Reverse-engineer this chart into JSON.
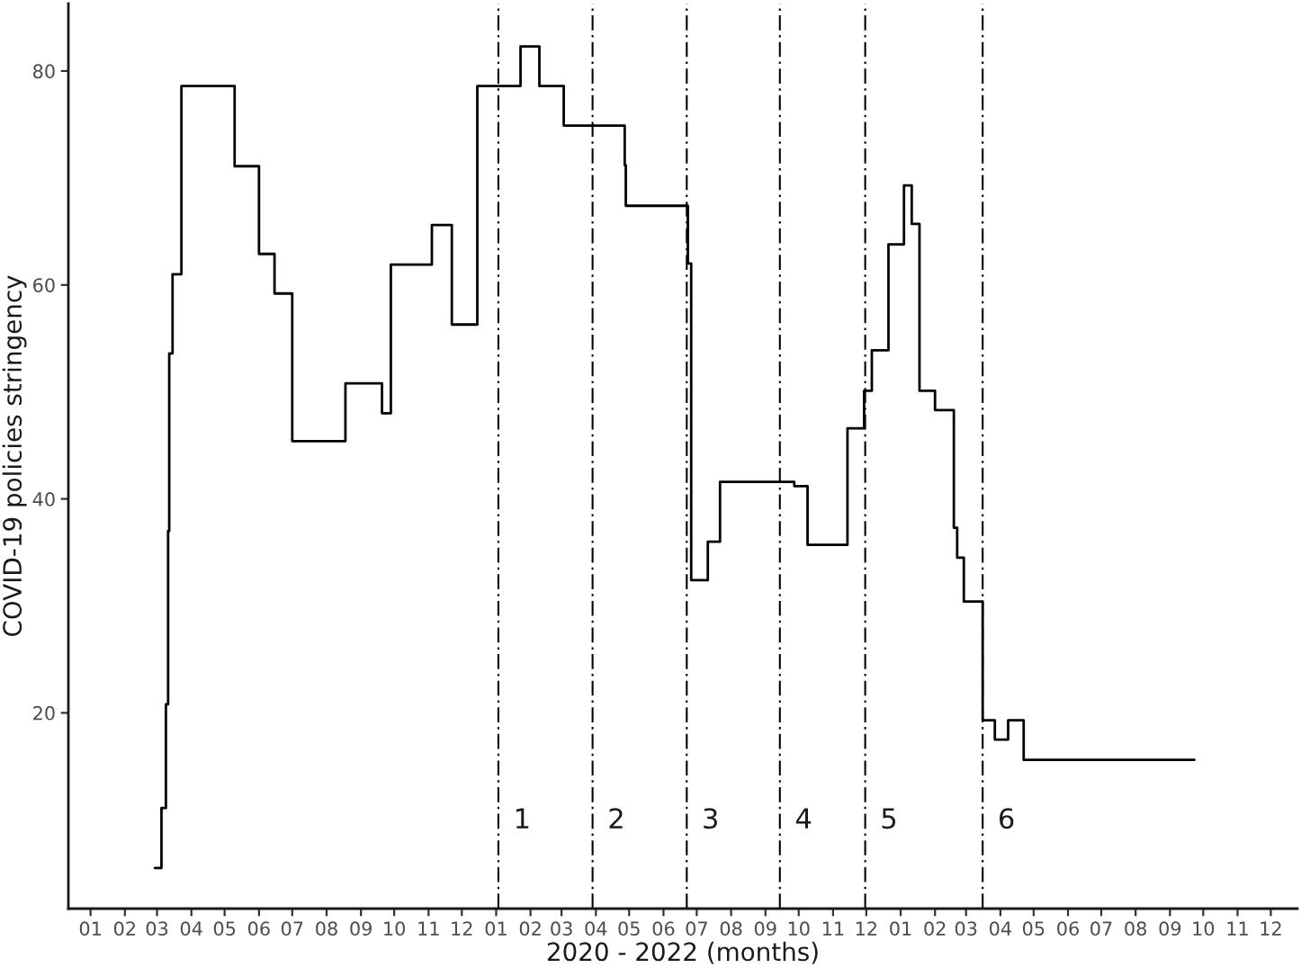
{
  "chart_data": {
    "type": "step",
    "xlabel": "2020 - 2022 (months)",
    "ylabel": "COVID-19 policies stringency",
    "color": "#000000",
    "x": [
      "2020-02-28",
      "2020-03-05",
      "2020-03-09",
      "2020-03-11",
      "2020-03-12",
      "2020-03-15",
      "2020-03-23",
      "2020-05-10",
      "2020-06-01",
      "2020-06-15",
      "2020-07-01",
      "2020-08-18",
      "2020-09-20",
      "2020-09-28",
      "2020-11-04",
      "2020-11-22",
      "2020-12-15",
      "2021-01-23",
      "2021-02-09",
      "2021-03-03",
      "2021-04-27",
      "2021-04-28",
      "2021-06-23",
      "2021-06-26",
      "2021-07-11",
      "2021-07-22",
      "2021-09-27",
      "2021-10-09",
      "2021-11-14",
      "2021-11-29",
      "2021-12-06",
      "2021-12-21",
      "2022-01-04",
      "2022-01-11",
      "2022-01-18",
      "2022-02-01",
      "2022-02-18",
      "2022-02-21",
      "2022-02-27",
      "2022-03-16",
      "2022-03-27",
      "2022-04-08",
      "2022-04-22",
      "2022-09-23"
    ],
    "values": [
      5.5,
      11.1,
      20.8,
      37.0,
      53.6,
      61.0,
      78.6,
      71.1,
      62.9,
      59.2,
      45.4,
      50.8,
      48.0,
      61.9,
      65.6,
      56.3,
      78.6,
      82.3,
      78.6,
      74.9,
      71.2,
      67.4,
      62.0,
      32.4,
      36.0,
      41.6,
      41.2,
      35.7,
      46.6,
      50.1,
      53.9,
      63.8,
      69.3,
      65.7,
      50.1,
      48.3,
      37.3,
      34.5,
      30.4,
      19.3,
      17.5,
      19.3,
      15.6,
      15.6
    ],
    "xlim": [
      "2019-12-12",
      "2022-12-25"
    ],
    "ylim": [
      1.7,
      86.3
    ],
    "xticks": [
      {
        "value": "2020-01-01",
        "label": "01"
      },
      {
        "value": "2020-02-01",
        "label": "02"
      },
      {
        "value": "2020-03-01",
        "label": "03"
      },
      {
        "value": "2020-04-01",
        "label": "04"
      },
      {
        "value": "2020-05-01",
        "label": "05"
      },
      {
        "value": "2020-06-01",
        "label": "06"
      },
      {
        "value": "2020-07-01",
        "label": "07"
      },
      {
        "value": "2020-08-01",
        "label": "08"
      },
      {
        "value": "2020-09-01",
        "label": "09"
      },
      {
        "value": "2020-10-01",
        "label": "10"
      },
      {
        "value": "2020-11-01",
        "label": "11"
      },
      {
        "value": "2020-12-01",
        "label": "12"
      },
      {
        "value": "2021-01-01",
        "label": "01"
      },
      {
        "value": "2021-02-01",
        "label": "02"
      },
      {
        "value": "2021-03-01",
        "label": "03"
      },
      {
        "value": "2021-04-01",
        "label": "04"
      },
      {
        "value": "2021-05-01",
        "label": "05"
      },
      {
        "value": "2021-06-01",
        "label": "06"
      },
      {
        "value": "2021-07-01",
        "label": "07"
      },
      {
        "value": "2021-08-01",
        "label": "08"
      },
      {
        "value": "2021-09-01",
        "label": "09"
      },
      {
        "value": "2021-10-01",
        "label": "10"
      },
      {
        "value": "2021-11-01",
        "label": "11"
      },
      {
        "value": "2021-12-01",
        "label": "12"
      },
      {
        "value": "2022-01-01",
        "label": "01"
      },
      {
        "value": "2022-02-01",
        "label": "02"
      },
      {
        "value": "2022-03-01",
        "label": "03"
      },
      {
        "value": "2022-04-01",
        "label": "04"
      },
      {
        "value": "2022-05-01",
        "label": "05"
      },
      {
        "value": "2022-06-01",
        "label": "06"
      },
      {
        "value": "2022-07-01",
        "label": "07"
      },
      {
        "value": "2022-08-01",
        "label": "08"
      },
      {
        "value": "2022-09-01",
        "label": "09"
      },
      {
        "value": "2022-10-01",
        "label": "10"
      },
      {
        "value": "2022-11-01",
        "label": "11"
      },
      {
        "value": "2022-12-01",
        "label": "12"
      }
    ],
    "yticks": [
      20,
      40,
      60,
      80
    ],
    "grid": false,
    "ref_lines": [
      {
        "axis": "x",
        "value": "2021-01-03",
        "label": "1",
        "color": "#000000",
        "line_style": "dashdot"
      },
      {
        "axis": "x",
        "value": "2021-03-29",
        "label": "2",
        "color": "#000000",
        "line_style": "dashdot"
      },
      {
        "axis": "x",
        "value": "2021-06-22",
        "label": "3",
        "color": "#000000",
        "line_style": "dashdot"
      },
      {
        "axis": "x",
        "value": "2021-09-14",
        "label": "4",
        "color": "#000000",
        "line_style": "dashdot"
      },
      {
        "axis": "x",
        "value": "2021-11-30",
        "label": "5",
        "color": "#000000",
        "line_style": "dashdot"
      },
      {
        "axis": "x",
        "value": "2022-03-16",
        "label": "6",
        "color": "#000000",
        "line_style": "dashdot"
      }
    ]
  }
}
